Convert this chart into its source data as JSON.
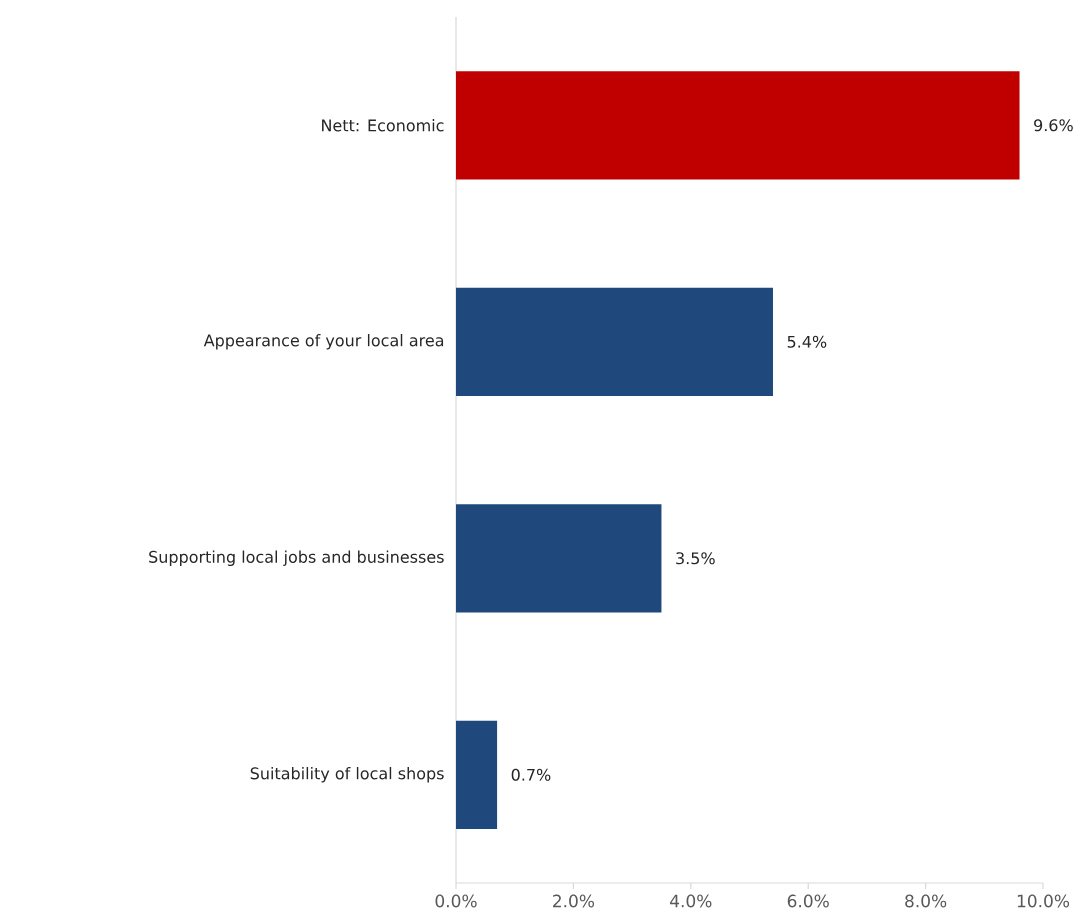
{
  "chart_data": {
    "type": "bar",
    "orientation": "horizontal",
    "categories": [
      "Nett: Economic",
      "Appearance of your local area",
      "Supporting local jobs and businesses",
      "Suitability of local shops"
    ],
    "values": [
      9.6,
      5.4,
      3.5,
      0.7
    ],
    "colors": [
      "#c00000",
      "#1f497d",
      "#1f497d",
      "#1f497d"
    ],
    "value_labels": [
      "9.6%",
      "5.4%",
      "3.5%",
      "0.7%"
    ],
    "xlim": [
      0,
      10
    ],
    "xticks": [
      {
        "value": 0,
        "label": "0.0%"
      },
      {
        "value": 2,
        "label": "2.0%"
      },
      {
        "value": 4,
        "label": "4.0%"
      },
      {
        "value": 6,
        "label": "6.0%"
      },
      {
        "value": 8,
        "label": "8.0%"
      },
      {
        "value": 10,
        "label": "10.0%"
      }
    ],
    "grid": false
  }
}
